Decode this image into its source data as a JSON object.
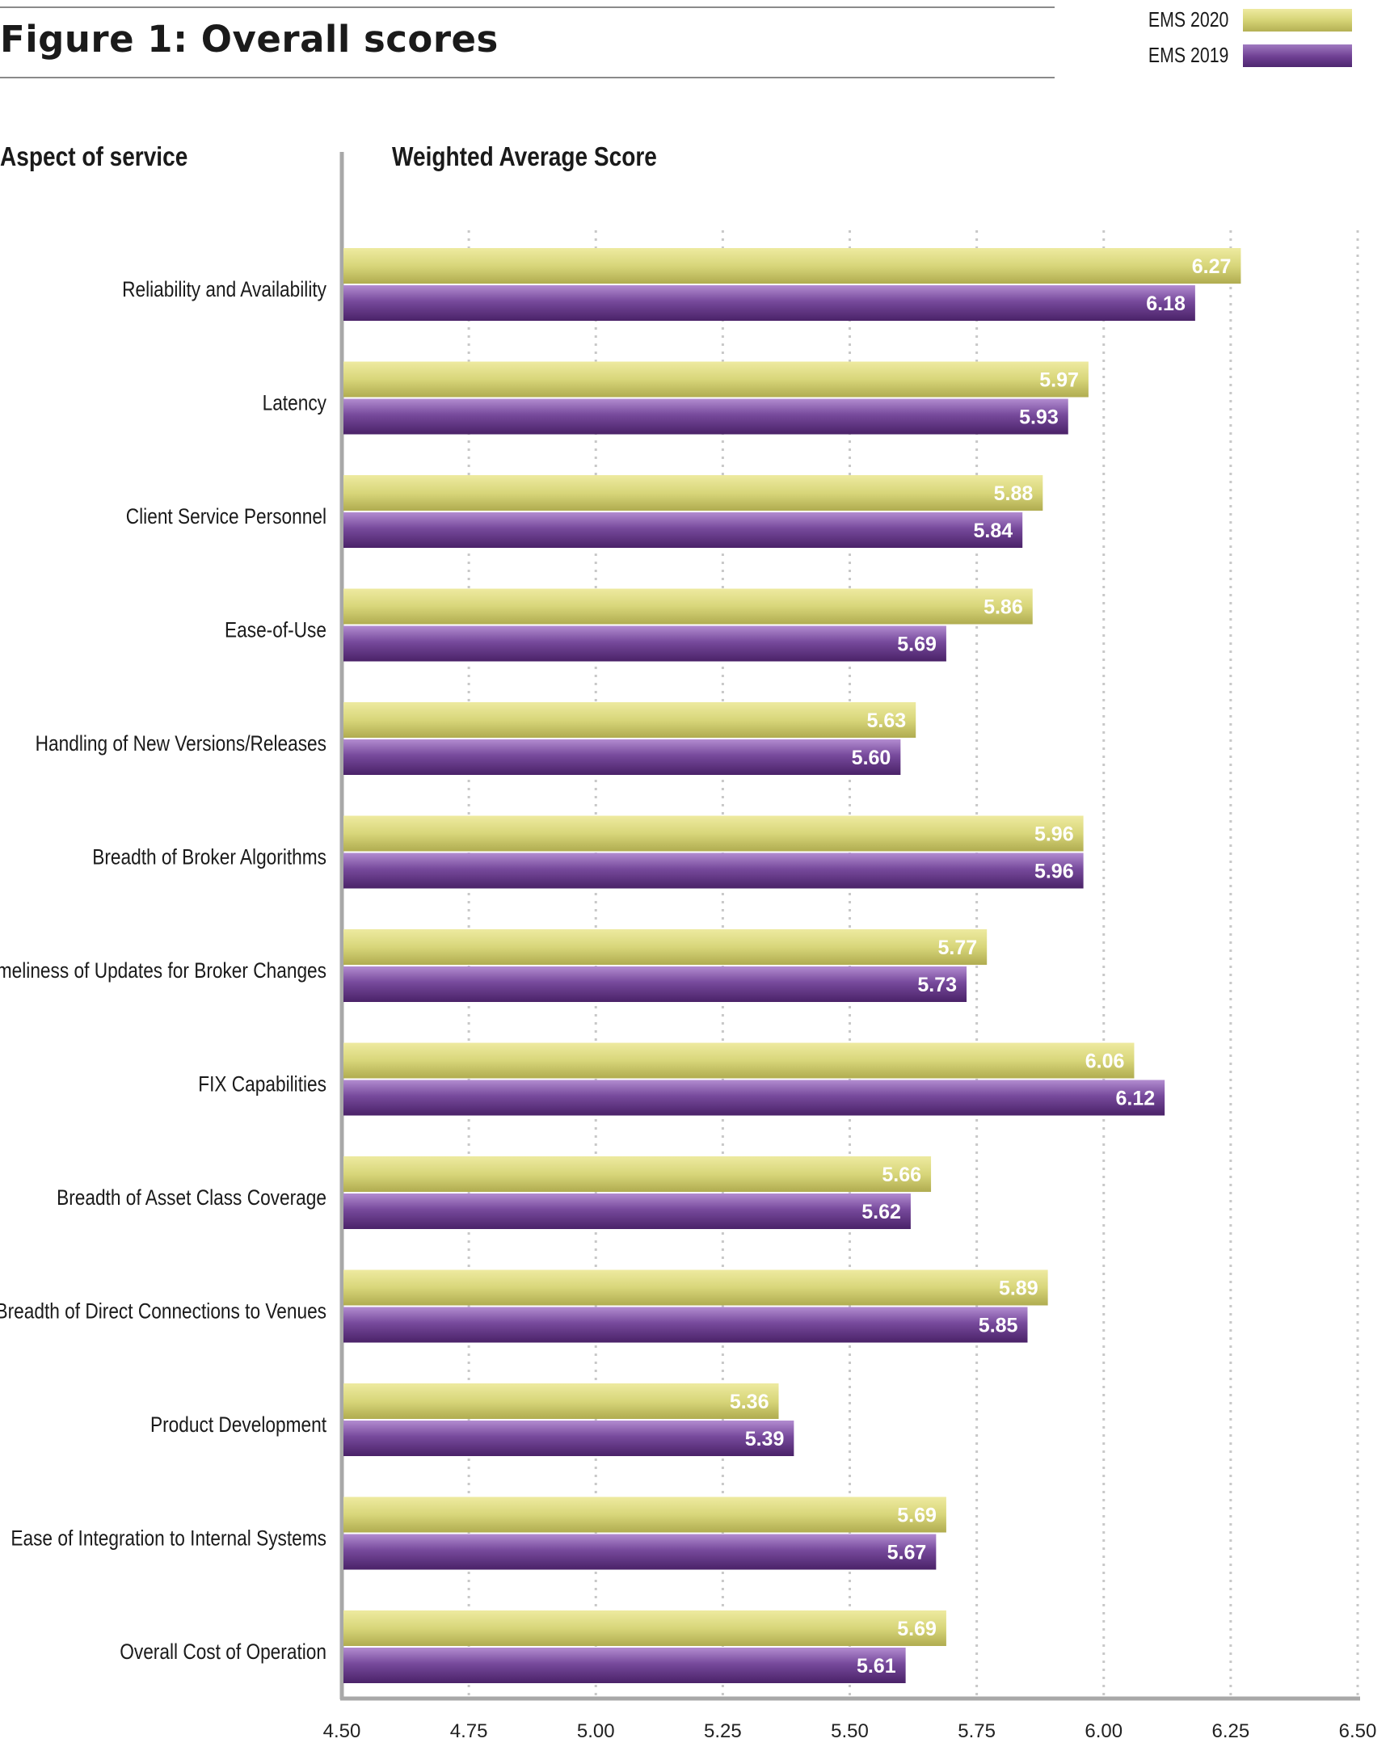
{
  "header": {
    "title": "Figure 1: Overall scores",
    "legend": [
      {
        "label": "EMS 2020",
        "color": "#d8d67a",
        "swatch_icon": "olive-swatch"
      },
      {
        "label": "EMS 2019",
        "color": "#7a4a9a",
        "swatch_icon": "purple-swatch"
      }
    ],
    "left_header": "Aspect of service",
    "right_header": "Weighted Average Score"
  },
  "chart_data": {
    "type": "bar",
    "orientation": "horizontal",
    "categories": [
      "Reliability and Availability",
      "Latency",
      "Client Service Personnel",
      "Ease-of-Use",
      "Handling of New Versions/Releases",
      "Breadth of Broker Algorithms",
      "Timeliness of Updates for Broker Changes",
      "FIX Capabilities",
      "Breadth of Asset Class Coverage",
      "Breadth of Direct Connections to Venues",
      "Product Development",
      "Ease of Integration to Internal Systems",
      "Overall Cost of Operation"
    ],
    "series": [
      {
        "name": "EMS 2020",
        "color": "#d8d67a",
        "values": [
          6.27,
          5.97,
          5.88,
          5.86,
          5.63,
          5.96,
          5.77,
          6.06,
          5.66,
          5.89,
          5.36,
          5.69,
          5.69
        ]
      },
      {
        "name": "EMS 2019",
        "color": "#7a4a9a",
        "values": [
          6.18,
          5.93,
          5.84,
          5.69,
          5.6,
          5.96,
          5.73,
          6.12,
          5.62,
          5.85,
          5.39,
          5.67,
          5.61
        ]
      }
    ],
    "xlim": [
      4.5,
      6.5
    ],
    "xticks": [
      "4.50",
      "4.75",
      "5.00",
      "5.25",
      "5.50",
      "5.75",
      "6.00",
      "6.25",
      "6.50"
    ],
    "grid": "vertical dotted",
    "legend_position": "top-right"
  }
}
